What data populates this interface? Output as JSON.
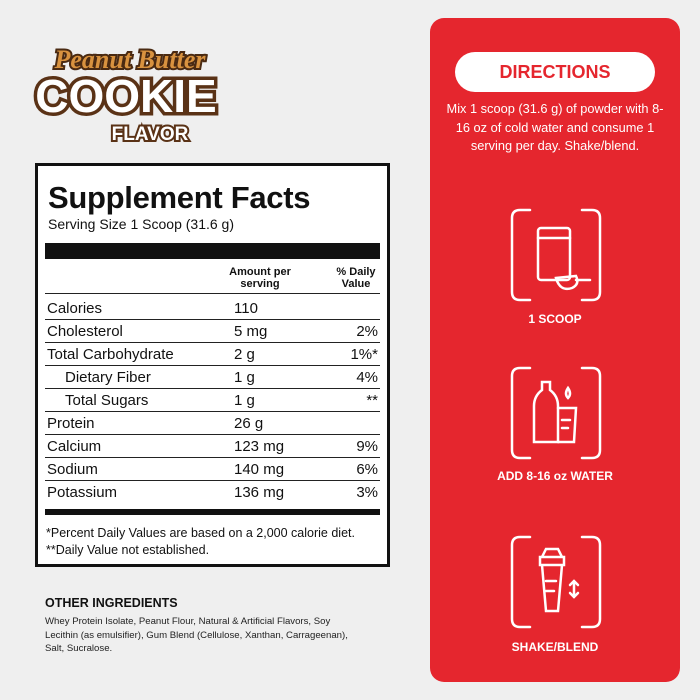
{
  "logo": {
    "line1": "Peanut Butter",
    "line2": "COOKIE",
    "line3": "FLAVOR"
  },
  "facts": {
    "title": "Supplement Facts",
    "serving_size": "Serving Size 1 Scoop (31.6 g)",
    "headers": {
      "amount": "Amount per serving",
      "daily_value": "% Daily Value"
    },
    "rows": [
      {
        "name": "Calories",
        "amount": "110"
      },
      {
        "name": "Cholesterol",
        "amount": "5 mg",
        "dv": "2%"
      },
      {
        "name": "Total Carbohydrate",
        "amount": "2 g",
        "dv": "1%*"
      },
      {
        "name": "Dietary Fiber",
        "amount": "1 g",
        "dv": "4%",
        "indent": true
      },
      {
        "name": "Total Sugars",
        "amount": "1 g",
        "dv": "**",
        "indent": true
      },
      {
        "name": "Protein",
        "amount": "26 g"
      },
      {
        "name": "Calcium",
        "amount": "123 mg",
        "dv": "9%"
      },
      {
        "name": "Sodium",
        "amount": "140 mg",
        "dv": "6%"
      },
      {
        "name": "Potassium",
        "amount": "136 mg",
        "dv": "3%"
      }
    ],
    "footnotes": [
      "*Percent Daily Values are based on a 2,000 calorie diet.",
      "**Daily Value not established."
    ]
  },
  "other_ingredients": {
    "title": "OTHER INGREDIENTS",
    "text": "Whey Protein Isolate, Peanut Flour, Natural & Artificial Flavors, Soy Lecithin (as emulsifier), Gum Blend (Cellulose, Xanthan, Carrageenan), Salt, Sucralose."
  },
  "directions": {
    "title": "DIRECTIONS",
    "text": "Mix 1 scoop (31.6 g) of powder with 8-16 oz of cold water and consume 1 serving per day. Shake/blend.",
    "steps": [
      "1 SCOOP",
      "ADD 8-16 oz WATER",
      "SHAKE/BLEND"
    ]
  }
}
